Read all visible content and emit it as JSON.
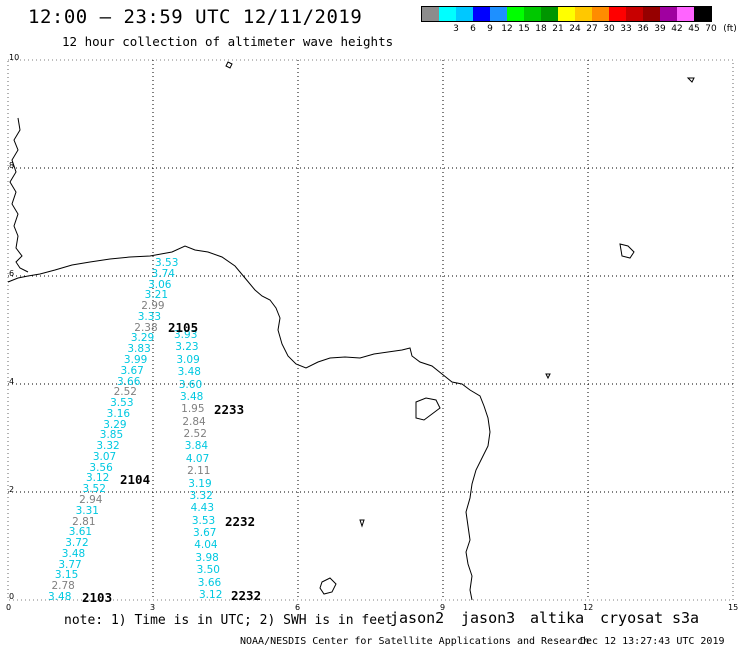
{
  "header": {
    "title": "12:00 – 23:59 UTC 12/11/2019",
    "subtitle": "12 hour collection of altimeter wave heights"
  },
  "legend": {
    "unit": "(ft)",
    "bins": [
      {
        "label": "",
        "color": "#8c8c8c"
      },
      {
        "label": "3",
        "color": "#00ffff"
      },
      {
        "label": "6",
        "color": "#00c8ff"
      },
      {
        "label": "9",
        "color": "#0000ff"
      },
      {
        "label": "12",
        "color": "#1e90ff"
      },
      {
        "label": "15",
        "color": "#00ff00"
      },
      {
        "label": "18",
        "color": "#00c800"
      },
      {
        "label": "21",
        "color": "#009600"
      },
      {
        "label": "24",
        "color": "#ffff00"
      },
      {
        "label": "27",
        "color": "#ffc800"
      },
      {
        "label": "30",
        "color": "#ff8c00"
      },
      {
        "label": "33",
        "color": "#ff0000"
      },
      {
        "label": "36",
        "color": "#c80000"
      },
      {
        "label": "39",
        "color": "#960000"
      },
      {
        "label": "42",
        "color": "#a000a0"
      },
      {
        "label": "45",
        "color": "#ff64ff"
      },
      {
        "label": "70",
        "color": "#000000"
      }
    ]
  },
  "axes": {
    "lat_labels": [
      "10",
      "8",
      "6",
      "4",
      "2",
      "0"
    ],
    "lon_labels": [
      "0",
      "3",
      "6",
      "9",
      "12",
      "15"
    ]
  },
  "passes": [
    {
      "label": "2105",
      "color": "#009600"
    },
    {
      "label": "2104",
      "color": "#009600"
    },
    {
      "label": "2103",
      "color": "#009600"
    },
    {
      "label": "2233",
      "color": "#e00000"
    },
    {
      "label": "2232",
      "color": "#e00000"
    },
    {
      "label": "2232",
      "color": "#e00000"
    }
  ],
  "track_west": [
    {
      "v": "3.53",
      "c": "#00c8e0"
    },
    {
      "v": "3.74",
      "c": "#00c8e0"
    },
    {
      "v": "3.06",
      "c": "#00c8e0"
    },
    {
      "v": "3.21",
      "c": "#00c8e0"
    },
    {
      "v": "2.99",
      "c": "#808080"
    },
    {
      "v": "3.33",
      "c": "#00c8e0"
    },
    {
      "v": "2.38",
      "c": "#808080"
    },
    {
      "v": "3.29",
      "c": "#00c8e0"
    },
    {
      "v": "3.83",
      "c": "#00c8e0"
    },
    {
      "v": "3.99",
      "c": "#00c8e0"
    },
    {
      "v": "3.67",
      "c": "#00c8e0"
    },
    {
      "v": "3.66",
      "c": "#00c8e0"
    },
    {
      "v": "2.52",
      "c": "#808080"
    },
    {
      "v": "3.53",
      "c": "#00c8e0"
    },
    {
      "v": "3.16",
      "c": "#00c8e0"
    },
    {
      "v": "3.29",
      "c": "#00c8e0"
    },
    {
      "v": "3.85",
      "c": "#00c8e0"
    },
    {
      "v": "3.32",
      "c": "#00c8e0"
    },
    {
      "v": "3.07",
      "c": "#00c8e0"
    },
    {
      "v": "3.56",
      "c": "#00c8e0"
    },
    {
      "v": "3.12",
      "c": "#00c8e0"
    },
    {
      "v": "3.52",
      "c": "#00c8e0"
    },
    {
      "v": "2.94",
      "c": "#808080"
    },
    {
      "v": "3.31",
      "c": "#00c8e0"
    },
    {
      "v": "2.81",
      "c": "#808080"
    },
    {
      "v": "3.61",
      "c": "#00c8e0"
    },
    {
      "v": "3.72",
      "c": "#00c8e0"
    },
    {
      "v": "3.48",
      "c": "#00c8e0"
    },
    {
      "v": "3.77",
      "c": "#00c8e0"
    },
    {
      "v": "3.15",
      "c": "#00c8e0"
    },
    {
      "v": "2.78",
      "c": "#808080"
    },
    {
      "v": "3.48",
      "c": "#00c8e0"
    }
  ],
  "track_east": [
    {
      "v": "3.93",
      "c": "#00c8e0"
    },
    {
      "v": "3.23",
      "c": "#00c8e0"
    },
    {
      "v": "3.09",
      "c": "#00c8e0"
    },
    {
      "v": "3.48",
      "c": "#00c8e0"
    },
    {
      "v": "3.60",
      "c": "#00c8e0"
    },
    {
      "v": "3.48",
      "c": "#00c8e0"
    },
    {
      "v": "1.95",
      "c": "#808080"
    },
    {
      "v": "2.84",
      "c": "#808080"
    },
    {
      "v": "2.52",
      "c": "#808080"
    },
    {
      "v": "3.84",
      "c": "#00c8e0"
    },
    {
      "v": "4.07",
      "c": "#00c8e0"
    },
    {
      "v": "2.11",
      "c": "#808080"
    },
    {
      "v": "3.19",
      "c": "#00c8e0"
    },
    {
      "v": "3.32",
      "c": "#00c8e0"
    },
    {
      "v": "4.43",
      "c": "#00c8e0"
    },
    {
      "v": "3.53",
      "c": "#00c8e0"
    },
    {
      "v": "3.67",
      "c": "#00c8e0"
    },
    {
      "v": "4.04",
      "c": "#00c8e0"
    },
    {
      "v": "3.98",
      "c": "#00c8e0"
    },
    {
      "v": "3.50",
      "c": "#00c8e0"
    },
    {
      "v": "3.66",
      "c": "#00c8e0"
    },
    {
      "v": "3.12",
      "c": "#00c8e0"
    }
  ],
  "footer": {
    "note": "note: 1) Time is in UTC; 2) SWH is in feet",
    "satellites": [
      {
        "name": "jason2",
        "color": "#0000e0"
      },
      {
        "name": "jason3",
        "color": "#00a000"
      },
      {
        "name": "altika",
        "color": "#ff9900"
      },
      {
        "name": "cryosat",
        "color": "#e00000"
      },
      {
        "name": "s3a",
        "color": "#990000"
      }
    ],
    "credit": "NOAA/NESDIS Center for Satellite Applications and Research",
    "timestamp": "Dec 12 13:27:43 UTC 2019"
  }
}
